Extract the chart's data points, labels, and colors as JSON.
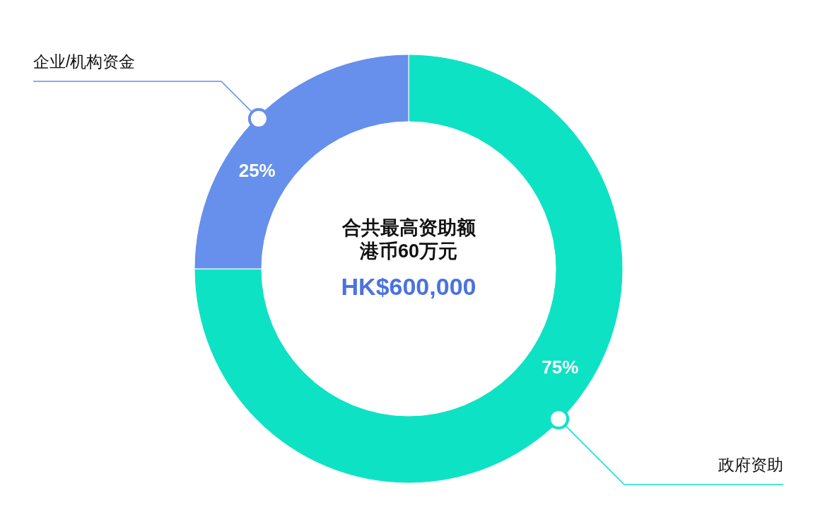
{
  "chart_data": {
    "type": "donut",
    "categories": [
      "政府资助",
      "企业/机构资金"
    ],
    "values": [
      75,
      25
    ],
    "colors": [
      "#0ee2c4",
      "#6690eb"
    ],
    "value_labels": [
      "75%",
      "25%"
    ],
    "annotations": [
      "合共最高资助额",
      "港币60万元",
      "HK$600,000"
    ]
  }
}
